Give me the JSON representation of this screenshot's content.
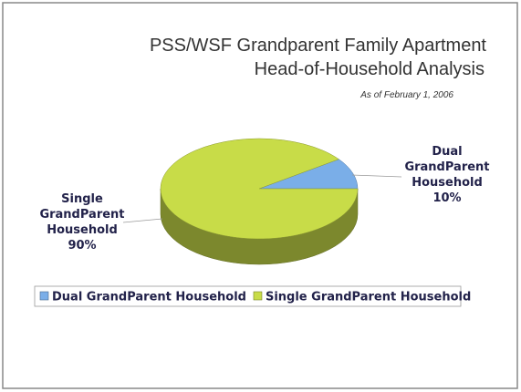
{
  "chart_data": {
    "type": "pie",
    "title": [
      "PSS/WSF Grandparent Family Apartment",
      "Head-of-Household Analysis"
    ],
    "subtitle": "As of February 1, 2006",
    "categories": [
      "Dual GrandParent Household",
      "Single GrandParent Household"
    ],
    "values": [
      10,
      90
    ],
    "value_labels": [
      "10%",
      "90%"
    ],
    "colors": [
      "#7aaee8",
      "#c8dc48"
    ],
    "legend": "bottom"
  }
}
